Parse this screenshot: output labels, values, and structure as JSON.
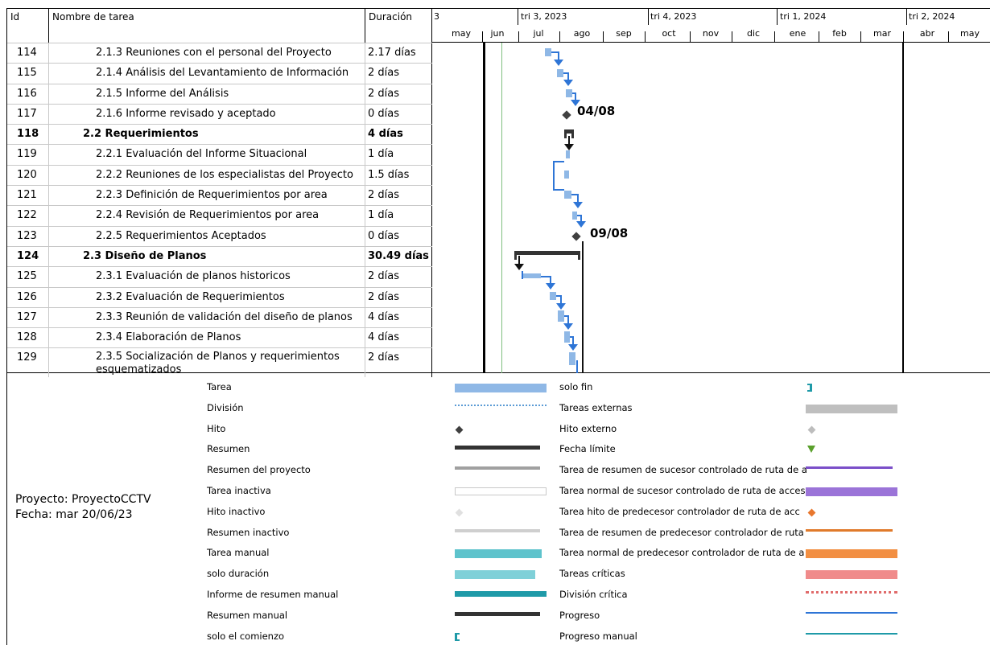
{
  "table": {
    "headers": {
      "id": "Id",
      "name": "Nombre de tarea",
      "duration": "Duración"
    },
    "rows": [
      {
        "id": "114",
        "name": "2.1.3 Reuniones con el personal del Proyecto",
        "duration": "2.17 días",
        "bold": false,
        "indent": 1
      },
      {
        "id": "115",
        "name": "2.1.4 Análisis del Levantamiento de Información",
        "duration": "2 días",
        "bold": false,
        "indent": 1
      },
      {
        "id": "116",
        "name": "2.1.5 Informe del Análisis",
        "duration": "2 días",
        "bold": false,
        "indent": 1
      },
      {
        "id": "117",
        "name": "2.1.6 Informe revisado y aceptado",
        "duration": "0 días",
        "bold": false,
        "indent": 1
      },
      {
        "id": "118",
        "name": "2.2 Requerimientos",
        "duration": "4 días",
        "bold": true,
        "indent": 0
      },
      {
        "id": "119",
        "name": "2.2.1 Evaluación del Informe Situacional",
        "duration": "1 día",
        "bold": false,
        "indent": 1
      },
      {
        "id": "120",
        "name": "2.2.2 Reuniones de los especialistas del Proyecto",
        "duration": "1.5 días",
        "bold": false,
        "indent": 1
      },
      {
        "id": "121",
        "name": "2.2.3 Definición de Requerimientos por area",
        "duration": "2 días",
        "bold": false,
        "indent": 1
      },
      {
        "id": "122",
        "name": "2.2.4 Revisión de Requerimientos por area",
        "duration": "1 día",
        "bold": false,
        "indent": 1
      },
      {
        "id": "123",
        "name": "2.2.5 Requerimientos Aceptados",
        "duration": "0 días",
        "bold": false,
        "indent": 1
      },
      {
        "id": "124",
        "name": "2.3 Diseño de Planos",
        "duration": "30.49 días",
        "bold": true,
        "indent": 0
      },
      {
        "id": "125",
        "name": "2.3.1 Evaluación de planos historicos",
        "duration": "2 días",
        "bold": false,
        "indent": 1
      },
      {
        "id": "126",
        "name": "2.3.2 Evaluación de Requerimientos",
        "duration": "2 días",
        "bold": false,
        "indent": 1
      },
      {
        "id": "127",
        "name": "2.3.3 Reunión de validación del diseño de planos",
        "duration": "4 días",
        "bold": false,
        "indent": 1
      },
      {
        "id": "128",
        "name": "2.3.4 Elaboración de Planos",
        "duration": "4 días",
        "bold": false,
        "indent": 1
      },
      {
        "id": "129",
        "name": "2.3.5 Socialización de Planos y requerimientos esquematizados",
        "duration": "2 días",
        "bold": false,
        "indent": 1
      }
    ]
  },
  "timeline": {
    "quarters": [
      "3",
      "tri 3, 2023",
      "tri 4, 2023",
      "tri 1, 2024",
      "tri 2, 2024"
    ],
    "months": [
      "may",
      "jun",
      "jul",
      "ago",
      "sep",
      "oct",
      "nov",
      "dic",
      "ene",
      "feb",
      "mar",
      "abr",
      "may"
    ],
    "milestones": [
      {
        "label": "04/08"
      },
      {
        "label": "09/08"
      }
    ]
  },
  "project": {
    "name_line": "Proyecto: ProyectoCCTV",
    "date_line": "Fecha: mar 20/06/23"
  },
  "legend": {
    "left": [
      "Tarea",
      "División",
      "Hito",
      "Resumen",
      "Resumen del proyecto",
      "Tarea inactiva",
      "Hito inactivo",
      "Resumen inactivo",
      "Tarea manual",
      "solo duración",
      "Informe de resumen manual",
      "Resumen manual",
      "solo el comienzo"
    ],
    "right": [
      "solo fin",
      "Tareas externas",
      "Hito externo",
      "Fecha límite",
      "Tarea de resumen de sucesor controlado de ruta de a",
      "Tarea normal de sucesor controlado de ruta de acces",
      "Tarea hito de predecesor controlador de ruta de acc",
      "Tarea de resumen de predecesor controlador de ruta",
      "Tarea normal de predecesor controlador de ruta de a",
      "Tareas críticas",
      "División crítica",
      "Progreso",
      "Progreso manual"
    ]
  }
}
